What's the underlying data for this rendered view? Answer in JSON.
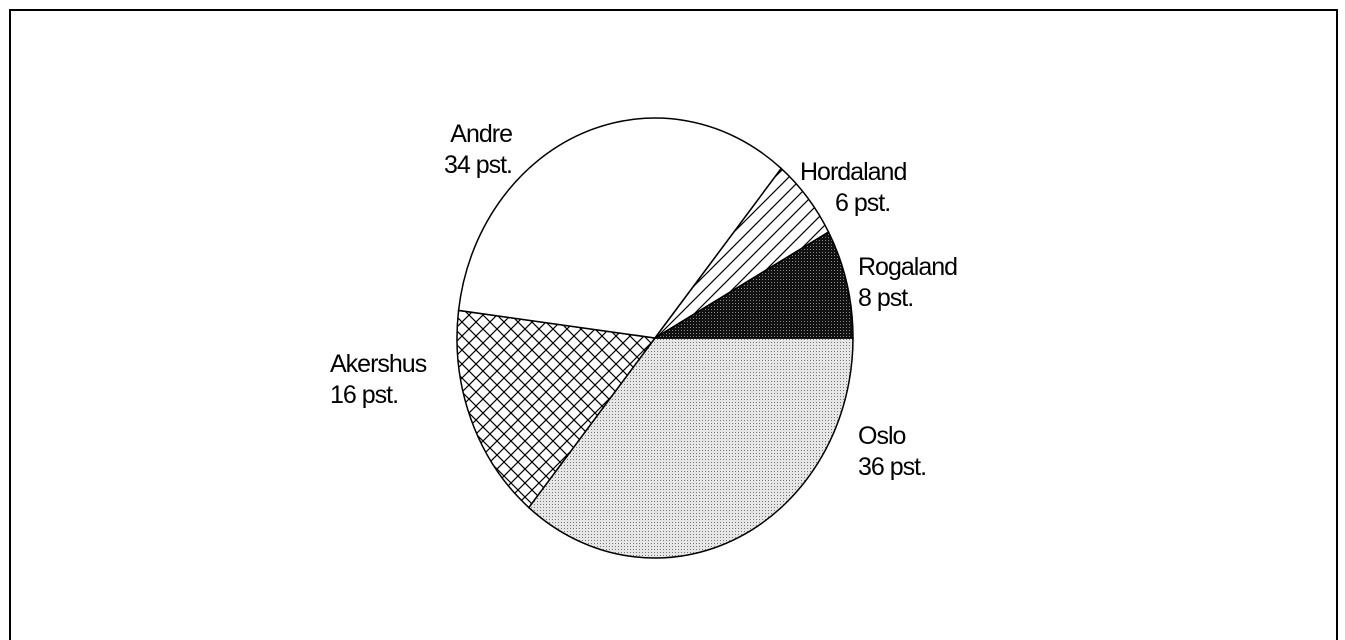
{
  "chart_data": {
    "type": "pie",
    "categories": [
      "Oslo",
      "Akershus",
      "Andre",
      "Hordaland",
      "Rogaland"
    ],
    "values": [
      36,
      16,
      34,
      6,
      8
    ],
    "value_labels": [
      "36 pst.",
      "16 pst.",
      "34 pst.",
      "6 pst.",
      "8 pst."
    ]
  }
}
